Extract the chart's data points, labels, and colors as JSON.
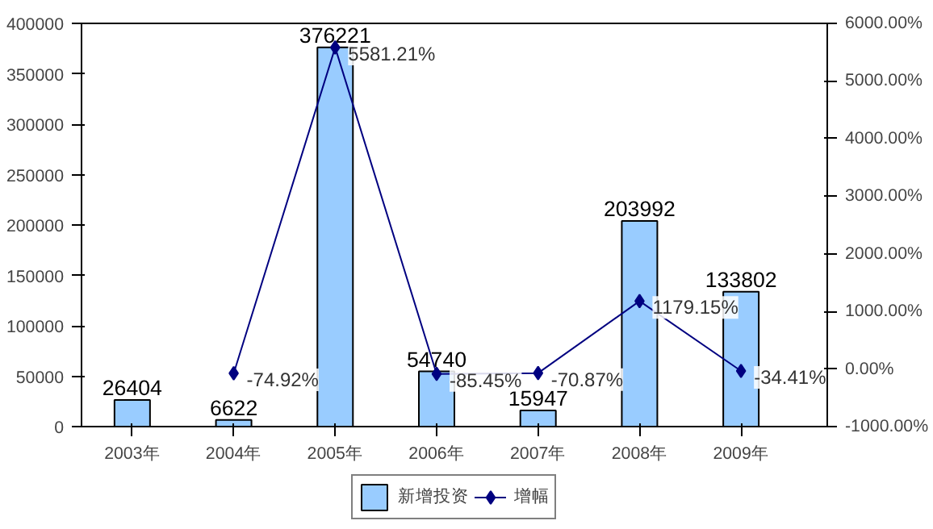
{
  "chart_data": {
    "type": "bar",
    "categories": [
      "2003年",
      "2004年",
      "2005年",
      "2006年",
      "2007年",
      "2008年",
      "2009年"
    ],
    "series": [
      {
        "name": "新增投资",
        "color": "#99ccff",
        "values": [
          26404,
          6622,
          376221,
          54740,
          15947,
          203992,
          133802
        ],
        "data_labels": true
      },
      {
        "name": "增幅",
        "type": "line",
        "axis": "y2",
        "color": "#000080",
        "marker": "diamond",
        "values": [
          null,
          -74.92,
          5581.21,
          -85.45,
          -70.87,
          1179.15,
          -34.41
        ],
        "value_labels": [
          null,
          "-74.92%",
          "5581.21%",
          "-85.45%",
          "-70.87%",
          "1179.15%",
          "-34.41%"
        ]
      }
    ],
    "ylim": [
      0,
      400000
    ],
    "yticks": [
      0,
      50000,
      100000,
      150000,
      200000,
      250000,
      300000,
      350000,
      400000
    ],
    "y2lim": [
      -1000,
      6000
    ],
    "y2ticks": [
      {
        "value": -1000,
        "label": "-1000.00%"
      },
      {
        "value": 0,
        "label": "0.00%"
      },
      {
        "value": 1000,
        "label": "1000.00%"
      },
      {
        "value": 2000,
        "label": "2000.00%"
      },
      {
        "value": 3000,
        "label": "3000.00%"
      },
      {
        "value": 4000,
        "label": "4000.00%"
      },
      {
        "value": 5000,
        "label": "5000.00%"
      },
      {
        "value": 6000,
        "label": "6000.00%"
      }
    ],
    "grid": false,
    "legend": "bottom"
  }
}
